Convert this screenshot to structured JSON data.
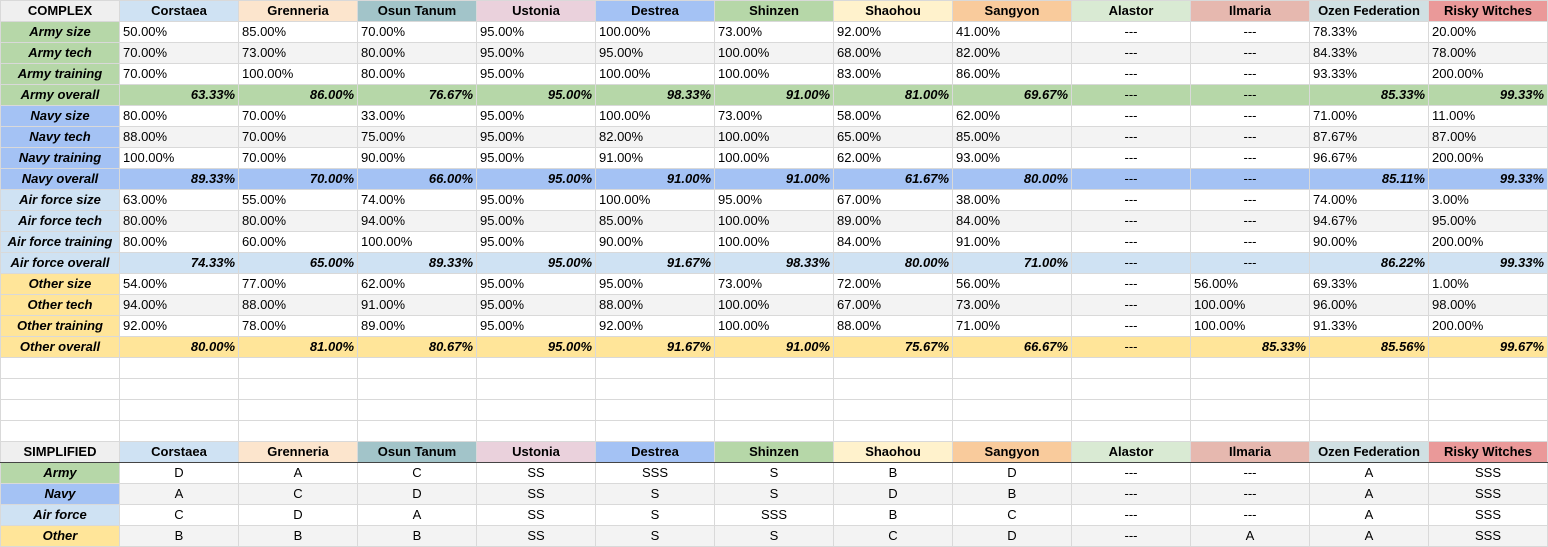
{
  "colors": {
    "nations": [
      "#cfe2f3",
      "#fce5cd",
      "#a2c4c9",
      "#ead1dc",
      "#a4c2f4",
      "#b6d7a8",
      "#fff2cc",
      "#f9cb9c",
      "#d9ead3",
      "#e6b8af",
      "#d0e0e3",
      "#ea9999"
    ],
    "army": "#b6d7a8",
    "navy": "#a4c2f4",
    "airforce": "#cfe2f3",
    "other": "#ffe599"
  },
  "nations": [
    "Corstaea",
    "Grenneria",
    "Osun Tanum",
    "Ustonia",
    "Destrea",
    "Shinzen",
    "Shaohou",
    "Sangyon",
    "Alastor",
    "Ilmaria",
    "Ozen Federation",
    "Risky Witches"
  ],
  "complex": {
    "corner": "COMPLEX",
    "groups": [
      {
        "color_key": "army",
        "rows": [
          {
            "label": "Army size",
            "values": [
              "50.00%",
              "85.00%",
              "70.00%",
              "95.00%",
              "100.00%",
              "73.00%",
              "92.00%",
              "41.00%",
              "---",
              "---",
              "78.33%",
              "20.00%"
            ]
          },
          {
            "label": "Army tech",
            "values": [
              "70.00%",
              "73.00%",
              "80.00%",
              "95.00%",
              "95.00%",
              "100.00%",
              "68.00%",
              "82.00%",
              "---",
              "---",
              "84.33%",
              "78.00%"
            ]
          },
          {
            "label": "Army training",
            "values": [
              "70.00%",
              "100.00%",
              "80.00%",
              "95.00%",
              "100.00%",
              "100.00%",
              "83.00%",
              "86.00%",
              "---",
              "---",
              "93.33%",
              "200.00%"
            ]
          }
        ],
        "overall": {
          "label": "Army overall",
          "values": [
            "63.33%",
            "86.00%",
            "76.67%",
            "95.00%",
            "98.33%",
            "91.00%",
            "81.00%",
            "69.67%",
            "---",
            "---",
            "85.33%",
            "99.33%"
          ]
        }
      },
      {
        "color_key": "navy",
        "rows": [
          {
            "label": "Navy size",
            "values": [
              "80.00%",
              "70.00%",
              "33.00%",
              "95.00%",
              "100.00%",
              "73.00%",
              "58.00%",
              "62.00%",
              "---",
              "---",
              "71.00%",
              "11.00%"
            ]
          },
          {
            "label": "Navy tech",
            "values": [
              "88.00%",
              "70.00%",
              "75.00%",
              "95.00%",
              "82.00%",
              "100.00%",
              "65.00%",
              "85.00%",
              "---",
              "---",
              "87.67%",
              "87.00%"
            ]
          },
          {
            "label": "Navy training",
            "values": [
              "100.00%",
              "70.00%",
              "90.00%",
              "95.00%",
              "91.00%",
              "100.00%",
              "62.00%",
              "93.00%",
              "---",
              "---",
              "96.67%",
              "200.00%"
            ]
          }
        ],
        "overall": {
          "label": "Navy overall",
          "values": [
            "89.33%",
            "70.00%",
            "66.00%",
            "95.00%",
            "91.00%",
            "91.00%",
            "61.67%",
            "80.00%",
            "---",
            "---",
            "85.11%",
            "99.33%"
          ]
        }
      },
      {
        "color_key": "airforce",
        "rows": [
          {
            "label": "Air force size",
            "values": [
              "63.00%",
              "55.00%",
              "74.00%",
              "95.00%",
              "100.00%",
              "95.00%",
              "67.00%",
              "38.00%",
              "---",
              "---",
              "74.00%",
              "3.00%"
            ]
          },
          {
            "label": "Air force tech",
            "values": [
              "80.00%",
              "80.00%",
              "94.00%",
              "95.00%",
              "85.00%",
              "100.00%",
              "89.00%",
              "84.00%",
              "---",
              "---",
              "94.67%",
              "95.00%"
            ]
          },
          {
            "label": "Air force training",
            "values": [
              "80.00%",
              "60.00%",
              "100.00%",
              "95.00%",
              "90.00%",
              "100.00%",
              "84.00%",
              "91.00%",
              "---",
              "---",
              "90.00%",
              "200.00%"
            ]
          }
        ],
        "overall": {
          "label": "Air force overall",
          "values": [
            "74.33%",
            "65.00%",
            "89.33%",
            "95.00%",
            "91.67%",
            "98.33%",
            "80.00%",
            "71.00%",
            "---",
            "---",
            "86.22%",
            "99.33%"
          ]
        }
      },
      {
        "color_key": "other",
        "rows": [
          {
            "label": "Other size",
            "values": [
              "54.00%",
              "77.00%",
              "62.00%",
              "95.00%",
              "95.00%",
              "73.00%",
              "72.00%",
              "56.00%",
              "---",
              "56.00%",
              "69.33%",
              "1.00%"
            ]
          },
          {
            "label": "Other tech",
            "values": [
              "94.00%",
              "88.00%",
              "91.00%",
              "95.00%",
              "88.00%",
              "100.00%",
              "67.00%",
              "73.00%",
              "---",
              "100.00%",
              "96.00%",
              "98.00%"
            ]
          },
          {
            "label": "Other training",
            "values": [
              "92.00%",
              "78.00%",
              "89.00%",
              "95.00%",
              "92.00%",
              "100.00%",
              "88.00%",
              "71.00%",
              "---",
              "100.00%",
              "91.33%",
              "200.00%"
            ]
          }
        ],
        "overall": {
          "label": "Other overall",
          "values": [
            "80.00%",
            "81.00%",
            "80.67%",
            "95.00%",
            "91.67%",
            "91.00%",
            "75.67%",
            "66.67%",
            "---",
            "85.33%",
            "85.56%",
            "99.67%"
          ]
        }
      }
    ]
  },
  "simplified": {
    "corner": "SIMPLIFIED",
    "rows": [
      {
        "label": "Army",
        "color_key": "army",
        "grades": [
          "D",
          "A",
          "C",
          "SS",
          "SSS",
          "S",
          "B",
          "D",
          "---",
          "---",
          "A",
          "SSS"
        ]
      },
      {
        "label": "Navy",
        "color_key": "navy",
        "grades": [
          "A",
          "C",
          "D",
          "SS",
          "S",
          "S",
          "D",
          "B",
          "---",
          "---",
          "A",
          "SSS"
        ]
      },
      {
        "label": "Air force",
        "color_key": "airforce",
        "grades": [
          "C",
          "D",
          "A",
          "SS",
          "S",
          "SSS",
          "B",
          "C",
          "---",
          "---",
          "A",
          "SSS"
        ]
      },
      {
        "label": "Other",
        "color_key": "other",
        "grades": [
          "B",
          "B",
          "B",
          "SS",
          "S",
          "S",
          "C",
          "D",
          "---",
          "A",
          "A",
          "SSS"
        ]
      }
    ]
  }
}
